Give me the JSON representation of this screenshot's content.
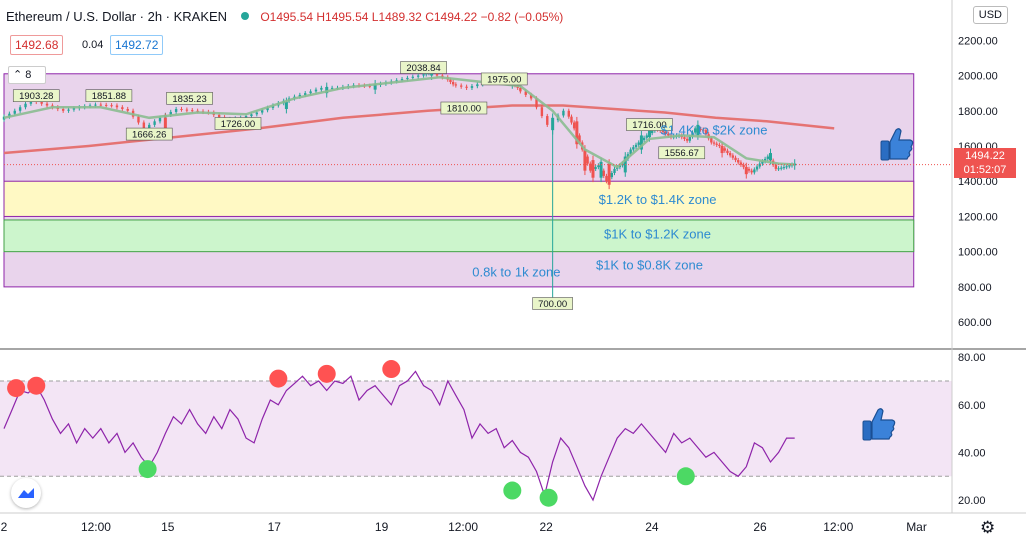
{
  "header": {
    "symbol": "Ethereum / U.S. Dollar · 2h · KRAKEN",
    "open": "O1495.54",
    "high": "H1495.54",
    "low": "L1489.32",
    "close": "C1494.22",
    "change": "−0.82 (−0.05%)",
    "sell_price": "1492.68",
    "spread": "0.04",
    "buy_price": "1492.72",
    "currency": "USD",
    "indicator_count": "8"
  },
  "last_price": {
    "value": "1494.22",
    "countdown": "01:52:07"
  },
  "colors": {
    "up": "#26a69a",
    "down": "#ef5350",
    "ma_short": "#8bbd91",
    "ma_long": "#e57373",
    "rsi_line": "#8e24aa",
    "rsi_band": "#f3e5f5",
    "zone_purple": "#e9d4ec",
    "zone_yellow": "#fff9c4",
    "zone_green": "#ccf5cc",
    "annotation_text": "#2e8bd1",
    "circle_red": "#ff5252",
    "circle_green": "#4cd964"
  },
  "chart_data": [
    {
      "type": "candlestick",
      "title": "Ethereum / U.S. Dollar · 2h · KRAKEN",
      "ylabel": "USD",
      "ylim": [
        470,
        2270
      ],
      "y_ticks": [
        600,
        800,
        1000,
        1200,
        1400,
        1600,
        1800,
        2000,
        2200
      ],
      "y_tick_labels": [
        "600.00",
        "800.00",
        "1000.00",
        "1200.00",
        "1400.00",
        "1600.00",
        "1800.00",
        "2000.00",
        "2200.00"
      ],
      "x_tick_labels": [
        "2",
        "12:00",
        "15",
        "17",
        "19",
        "12:00",
        "22",
        "24",
        "26",
        "12:00",
        "Mar"
      ],
      "x_tick_positions": [
        0,
        11.4,
        20.3,
        33.5,
        46.8,
        56.9,
        67.2,
        80.3,
        93.7,
        103.4,
        113.1
      ],
      "approx_close_path": [
        [
          0,
          1750
        ],
        [
          2,
          1800
        ],
        [
          4,
          1860
        ],
        [
          6,
          1830
        ],
        [
          8,
          1800
        ],
        [
          10,
          1820
        ],
        [
          12,
          1835
        ],
        [
          14,
          1830
        ],
        [
          16,
          1800
        ],
        [
          18,
          1700
        ],
        [
          20,
          1760
        ],
        [
          22,
          1810
        ],
        [
          24,
          1800
        ],
        [
          26,
          1790
        ],
        [
          28,
          1750
        ],
        [
          30,
          1760
        ],
        [
          32,
          1790
        ],
        [
          34,
          1830
        ],
        [
          36,
          1870
        ],
        [
          38,
          1900
        ],
        [
          40,
          1930
        ],
        [
          42,
          1930
        ],
        [
          44,
          1945
        ],
        [
          46,
          1940
        ],
        [
          48,
          1960
        ],
        [
          50,
          1980
        ],
        [
          52,
          2000
        ],
        [
          53,
          2020
        ],
        [
          55,
          1990
        ],
        [
          56,
          1950
        ],
        [
          58,
          1930
        ],
        [
          60,
          1960
        ],
        [
          62,
          1990
        ],
        [
          63,
          1975
        ],
        [
          64,
          1930
        ],
        [
          66,
          1870
        ],
        [
          68,
          1720
        ],
        [
          70,
          1800
        ],
        [
          71,
          1700
        ],
        [
          72,
          1580
        ],
        [
          73,
          1460
        ],
        [
          74,
          1490
        ],
        [
          75,
          1400
        ],
        [
          76,
          1470
        ],
        [
          77,
          1500
        ],
        [
          78,
          1580
        ],
        [
          79,
          1620
        ],
        [
          80,
          1660
        ],
        [
          81,
          1700
        ],
        [
          82,
          1680
        ],
        [
          83,
          1650
        ],
        [
          84,
          1660
        ],
        [
          85,
          1630
        ],
        [
          86,
          1700
        ],
        [
          87,
          1690
        ],
        [
          88,
          1620
        ],
        [
          89,
          1600
        ],
        [
          90,
          1560
        ],
        [
          91,
          1520
        ],
        [
          92,
          1480
        ],
        [
          93,
          1450
        ],
        [
          94,
          1500
        ],
        [
          95,
          1540
        ],
        [
          96,
          1470
        ],
        [
          97,
          1480
        ],
        [
          98,
          1494
        ]
      ],
      "candle_bodies": [
        [
          20,
          1760,
          1690
        ],
        [
          35,
          1810,
          1850
        ],
        [
          40,
          1900,
          1935
        ],
        [
          46,
          1920,
          1950
        ],
        [
          53,
          2000,
          2040
        ],
        [
          63,
          1950,
          1990
        ],
        [
          68,
          1690,
          1760
        ],
        [
          71,
          1740,
          1610
        ],
        [
          72,
          1580,
          1460
        ],
        [
          73,
          1520,
          1420
        ],
        [
          74,
          1420,
          1510
        ],
        [
          75,
          1500,
          1380
        ],
        [
          77,
          1450,
          1540
        ],
        [
          79,
          1580,
          1660
        ],
        [
          80,
          1650,
          1700
        ],
        [
          86,
          1660,
          1720
        ],
        [
          89,
          1600,
          1560
        ],
        [
          92,
          1480,
          1440
        ],
        [
          95,
          1520,
          1560
        ],
        [
          98,
          1490,
          1500
        ]
      ],
      "ma_short": [
        [
          0,
          1760
        ],
        [
          6,
          1820
        ],
        [
          12,
          1820
        ],
        [
          18,
          1760
        ],
        [
          24,
          1790
        ],
        [
          30,
          1780
        ],
        [
          36,
          1870
        ],
        [
          42,
          1930
        ],
        [
          48,
          1960
        ],
        [
          54,
          1990
        ],
        [
          60,
          1960
        ],
        [
          64,
          1940
        ],
        [
          68,
          1800
        ],
        [
          72,
          1580
        ],
        [
          76,
          1480
        ],
        [
          80,
          1640
        ],
        [
          84,
          1660
        ],
        [
          88,
          1650
        ],
        [
          92,
          1530
        ],
        [
          96,
          1500
        ],
        [
          98,
          1495
        ]
      ],
      "ma_long": [
        [
          0,
          1560
        ],
        [
          10,
          1600
        ],
        [
          20,
          1650
        ],
        [
          30,
          1700
        ],
        [
          40,
          1760
        ],
        [
          50,
          1800
        ],
        [
          60,
          1830
        ],
        [
          66,
          1830
        ],
        [
          72,
          1810
        ],
        [
          78,
          1790
        ],
        [
          84,
          1760
        ],
        [
          90,
          1740
        ],
        [
          98,
          1700
        ]
      ],
      "price_labels": [
        {
          "x": 4,
          "y": 1880,
          "text": "1903.28"
        },
        {
          "x": 13,
          "y": 1880,
          "text": "1851.88"
        },
        {
          "x": 23,
          "y": 1865,
          "text": "1835.23"
        },
        {
          "x": 18,
          "y": 1662,
          "text": "1666.26"
        },
        {
          "x": 29,
          "y": 1722,
          "text": "1726.00"
        },
        {
          "x": 52,
          "y": 2040,
          "text": "2038.84"
        },
        {
          "x": 62,
          "y": 1975,
          "text": "1975.00"
        },
        {
          "x": 57,
          "y": 1810,
          "text": "1810.00"
        },
        {
          "x": 80,
          "y": 1716,
          "text": "1716.00"
        },
        {
          "x": 84,
          "y": 1556,
          "text": "1556.67"
        },
        {
          "x": 68,
          "y": 700,
          "text": "700.00"
        }
      ],
      "zones": [
        {
          "name": "zone-purple",
          "from": 800,
          "to": 2010,
          "color": "#e9d4ec",
          "border": "#8e24aa"
        },
        {
          "name": "zone-yellow",
          "from": 1200,
          "to": 1400,
          "color": "#fff9c4",
          "border": "#8e24aa"
        },
        {
          "name": "zone-green",
          "from": 1000,
          "to": 1180,
          "color": "#ccf5cc",
          "border": "#43a047"
        }
      ],
      "annotations": [
        {
          "x": 88,
          "y": 1665,
          "text": "$1.4K to $2K zone"
        },
        {
          "x": 81,
          "y": 1270,
          "text": "$1.2K to $1.4K zone"
        },
        {
          "x": 81,
          "y": 1075,
          "text": "$1K to $1.2K zone"
        },
        {
          "x": 80,
          "y": 900,
          "text": "$1K to $0.8K zone"
        },
        {
          "x": 63.5,
          "y": 860,
          "text": "0.8k to 1k zone"
        }
      ],
      "drop_line": {
        "x": 68,
        "from": 1750,
        "to": 700
      }
    },
    {
      "type": "line",
      "ylim": [
        15,
        83
      ],
      "y_ticks": [
        20,
        40,
        60,
        80
      ],
      "y_tick_labels": [
        "20.00",
        "40.00",
        "60.00",
        "80.00"
      ],
      "band": [
        30,
        70
      ],
      "series": [
        {
          "values": [
            [
              0,
              50
            ],
            [
              1,
              58
            ],
            [
              2,
              66
            ],
            [
              3,
              65
            ],
            [
              4,
              68
            ],
            [
              5,
              62
            ],
            [
              6,
              54
            ],
            [
              7,
              48
            ],
            [
              8,
              52
            ],
            [
              9,
              44
            ],
            [
              10,
              50
            ],
            [
              11,
              46
            ],
            [
              12,
              50
            ],
            [
              13,
              44
            ],
            [
              14,
              48
            ],
            [
              15,
              40
            ],
            [
              16,
              44
            ],
            [
              17,
              38
            ],
            [
              18,
              34
            ],
            [
              19,
              40
            ],
            [
              20,
              48
            ],
            [
              21,
              55
            ],
            [
              22,
              52
            ],
            [
              23,
              58
            ],
            [
              24,
              52
            ],
            [
              25,
              48
            ],
            [
              26,
              55
            ],
            [
              27,
              50
            ],
            [
              28,
              58
            ],
            [
              29,
              54
            ],
            [
              30,
              46
            ],
            [
              31,
              44
            ],
            [
              32,
              54
            ],
            [
              33,
              62
            ],
            [
              34,
              60
            ],
            [
              35,
              66
            ],
            [
              36,
              69
            ],
            [
              37,
              72
            ],
            [
              38,
              68
            ],
            [
              39,
              70
            ],
            [
              40,
              66
            ],
            [
              41,
              70
            ],
            [
              42,
              69
            ],
            [
              43,
              72
            ],
            [
              44,
              62
            ],
            [
              45,
              66
            ],
            [
              46,
              68
            ],
            [
              47,
              64
            ],
            [
              48,
              60
            ],
            [
              49,
              68
            ],
            [
              50,
              70
            ],
            [
              51,
              74
            ],
            [
              52,
              68
            ],
            [
              53,
              66
            ],
            [
              54,
              60
            ],
            [
              55,
              70
            ],
            [
              56,
              64
            ],
            [
              57,
              58
            ],
            [
              58,
              46
            ],
            [
              59,
              52
            ],
            [
              60,
              48
            ],
            [
              61,
              50
            ],
            [
              62,
              42
            ],
            [
              63,
              45
            ],
            [
              64,
              40
            ],
            [
              65,
              38
            ],
            [
              66,
              32
            ],
            [
              67,
              22
            ],
            [
              68,
              36
            ],
            [
              69,
              46
            ],
            [
              70,
              42
            ],
            [
              71,
              34
            ],
            [
              72,
              26
            ],
            [
              73,
              20
            ],
            [
              74,
              30
            ],
            [
              75,
              38
            ],
            [
              76,
              46
            ],
            [
              77,
              50
            ],
            [
              78,
              48
            ],
            [
              79,
              52
            ],
            [
              80,
              48
            ],
            [
              81,
              44
            ],
            [
              82,
              40
            ],
            [
              83,
              48
            ],
            [
              84,
              44
            ],
            [
              85,
              46
            ],
            [
              86,
              42
            ],
            [
              87,
              38
            ],
            [
              88,
              40
            ],
            [
              89,
              36
            ],
            [
              90,
              32
            ],
            [
              91,
              30
            ],
            [
              92,
              34
            ],
            [
              93,
              44
            ],
            [
              94,
              42
            ],
            [
              95,
              36
            ],
            [
              96,
              40
            ],
            [
              97,
              46
            ],
            [
              98,
              46
            ]
          ]
        }
      ],
      "circles_red": [
        [
          1.5,
          67
        ],
        [
          4,
          68
        ],
        [
          34,
          71
        ],
        [
          40,
          73
        ],
        [
          48,
          75
        ]
      ],
      "circles_green": [
        [
          17.8,
          33
        ],
        [
          63,
          24
        ],
        [
          67.5,
          21
        ],
        [
          84.5,
          30
        ]
      ]
    }
  ]
}
